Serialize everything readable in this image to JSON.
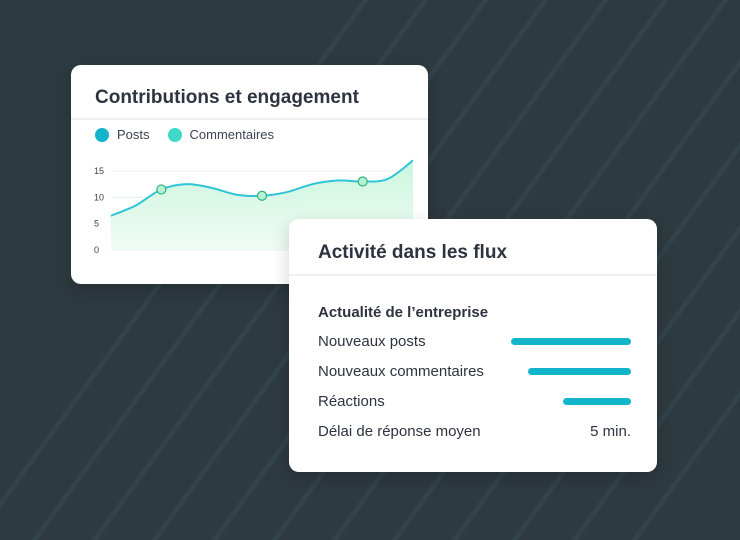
{
  "chart_card": {
    "title": "Contributions et engagement",
    "legend": [
      {
        "label": "Posts",
        "color": "#12b5c9"
      },
      {
        "label": "Commentaires",
        "color": "#3fd8c6"
      }
    ]
  },
  "feed_card": {
    "title": "Activité dans les flux",
    "section_title": "Actualité de l’entreprise",
    "rows": [
      {
        "label": "Nouveaux posts",
        "bar_fraction": 1.0
      },
      {
        "label": "Nouveaux commentaires",
        "bar_fraction": 0.86
      },
      {
        "label": "Réactions",
        "bar_fraction": 0.57
      },
      {
        "label": "Délai de réponse moyen",
        "value": "5 min."
      }
    ]
  },
  "chart_data": {
    "type": "area",
    "y_ticks": [
      "15",
      "10",
      "5",
      "0"
    ],
    "ylim": [
      0,
      15
    ],
    "x": [
      0,
      1,
      2,
      3,
      4,
      5,
      6,
      7,
      8,
      9,
      10,
      11,
      12
    ],
    "series": [
      {
        "name": "Posts",
        "values": [
          6.5,
          8.5,
          11.5,
          12.5,
          11.8,
          10.5,
          10.3,
          11.0,
          12.5,
          13.2,
          13.0,
          13.5,
          17.0
        ]
      }
    ],
    "markers_at_index": [
      2,
      6,
      10
    ],
    "colors": {
      "line": "#2ec5d6",
      "fill": "#d9f7ea",
      "marker_fill": "#b8f1cd",
      "marker_stroke": "#2bb389"
    },
    "grid": true,
    "legend_position": "top-left"
  }
}
